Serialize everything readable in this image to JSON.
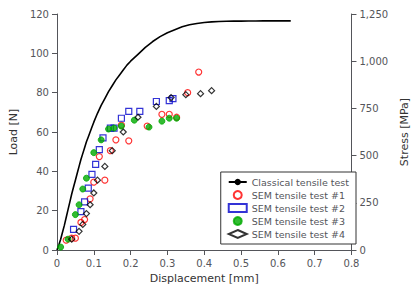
{
  "chart_data": {
    "type": "scatter",
    "xlabel": "Displacement [mm]",
    "ylabel": "Load [N]",
    "y2label": "Stress [MPa]",
    "xlim": [
      0,
      0.8
    ],
    "xticks": [
      0,
      0.1,
      0.2,
      0.3,
      0.4,
      0.5,
      0.6,
      0.7,
      0.8
    ],
    "ylim": [
      0,
      120
    ],
    "yticks": [
      0,
      20,
      40,
      60,
      80,
      100,
      120
    ],
    "y2lim": [
      0,
      1250
    ],
    "y2ticks": [
      0,
      250,
      500,
      750,
      1000,
      1250
    ],
    "grid": false,
    "legend": "lower right",
    "series": [
      {
        "name": "Classical tensile test",
        "type": "line",
        "line_style": "solid",
        "color": "#000000",
        "x": [
          0.0,
          0.005,
          0.01,
          0.015,
          0.02,
          0.025,
          0.03,
          0.035,
          0.04,
          0.045,
          0.05,
          0.055,
          0.06,
          0.065,
          0.07,
          0.075,
          0.08,
          0.085,
          0.09,
          0.095,
          0.1,
          0.11,
          0.12,
          0.13,
          0.14,
          0.15,
          0.16,
          0.17,
          0.18,
          0.19,
          0.2,
          0.22,
          0.24,
          0.26,
          0.28,
          0.3,
          0.32,
          0.34,
          0.36,
          0.38,
          0.4,
          0.42,
          0.44,
          0.46,
          0.48,
          0.5,
          0.52,
          0.54,
          0.56,
          0.58,
          0.6,
          0.62,
          0.635
        ],
        "values": [
          0.0,
          2.5,
          5.5,
          9.0,
          12.5,
          16.5,
          20.5,
          24.5,
          28.5,
          32.0,
          35.5,
          39.0,
          42.5,
          46.0,
          49.0,
          52.0,
          55.0,
          57.5,
          60.0,
          62.5,
          65.0,
          69.5,
          73.5,
          77.0,
          80.5,
          83.5,
          86.5,
          89.0,
          91.5,
          94.0,
          96.0,
          99.5,
          103.0,
          106.0,
          108.5,
          110.5,
          112.0,
          113.5,
          114.5,
          115.2,
          115.7,
          116.0,
          116.2,
          116.3,
          116.4,
          116.4,
          116.45,
          116.47,
          116.48,
          116.49,
          116.5,
          116.5,
          116.5
        ]
      },
      {
        "name": "SEM tensile test #1",
        "type": "scatter",
        "marker": "open circle",
        "color": "#ff0000",
        "x": [
          0.025,
          0.04,
          0.05,
          0.065,
          0.075,
          0.09,
          0.1,
          0.115,
          0.13,
          0.145,
          0.16,
          0.175,
          0.195,
          0.245,
          0.285,
          0.305,
          0.325,
          0.355,
          0.385
        ],
        "values": [
          5.0,
          6.0,
          6.0,
          14.0,
          15.5,
          26.0,
          34.5,
          47.5,
          35.5,
          50.5,
          56.0,
          63.5,
          55.5,
          63.0,
          69.0,
          69.0,
          67.5,
          80.0,
          90.5
        ]
      },
      {
        "name": "SEM tensile test #2",
        "type": "scatter",
        "marker": "open square",
        "color": "#0000cc",
        "x": [
          0.045,
          0.065,
          0.075,
          0.085,
          0.095,
          0.105,
          0.115,
          0.125,
          0.145,
          0.155,
          0.175,
          0.195,
          0.225,
          0.27,
          0.305,
          0.315
        ],
        "values": [
          10.5,
          19.5,
          24.5,
          31.5,
          38.5,
          43.5,
          51.0,
          57.0,
          62.0,
          62.0,
          67.0,
          70.5,
          70.5,
          75.5,
          76.0,
          77.0
        ]
      },
      {
        "name": "SEM tensile test #3",
        "type": "scatter",
        "marker": "circle",
        "color": "#00aa00",
        "x": [
          0.01,
          0.03,
          0.05,
          0.06,
          0.07,
          0.08,
          0.1,
          0.12,
          0.14,
          0.155,
          0.175,
          0.21,
          0.25,
          0.285,
          0.305,
          0.325
        ],
        "values": [
          1.5,
          5.5,
          18.0,
          23.0,
          31.0,
          36.5,
          49.5,
          56.0,
          61.5,
          62.0,
          63.0,
          66.0,
          62.5,
          65.5,
          67.0,
          67.0
        ]
      },
      {
        "name": "SEM tensile test #4",
        "type": "scatter",
        "marker": "open diamond",
        "color": "#000000",
        "x": [
          0.04,
          0.06,
          0.07,
          0.08,
          0.09,
          0.1,
          0.11,
          0.13,
          0.15,
          0.18,
          0.22,
          0.27,
          0.31,
          0.35,
          0.39,
          0.42
        ],
        "values": [
          5.5,
          9.5,
          13.0,
          18.5,
          23.0,
          29.0,
          35.5,
          42.5,
          50.5,
          60.0,
          67.5,
          73.0,
          77.5,
          79.0,
          79.5,
          81.0
        ]
      }
    ]
  }
}
